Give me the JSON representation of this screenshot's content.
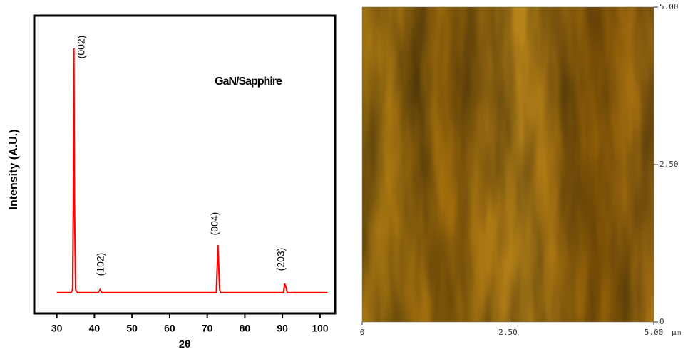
{
  "chart_data": [
    {
      "type": "line",
      "x_label": "2θ",
      "y_label": "Intensity (A.U.)",
      "title": "GaN/Sapphire",
      "x": [
        30,
        33.8,
        34.2,
        34.4,
        34.55,
        34.7,
        35.0,
        35.5,
        41.0,
        41.5,
        42.0,
        72.4,
        72.7,
        72.85,
        73.0,
        73.3,
        73.6,
        90.3,
        90.6,
        90.9,
        91.3,
        102
      ],
      "values": [
        7,
        7,
        8,
        38,
        89,
        38,
        8,
        7,
        7,
        8,
        7,
        7,
        17,
        23,
        18,
        8,
        7,
        7,
        10,
        9,
        7,
        7
      ],
      "color": "#ff0000",
      "xlim": [
        24,
        104
      ],
      "ylim": [
        0,
        100
      ],
      "xticks": [
        30,
        40,
        50,
        60,
        70,
        80,
        90,
        100
      ],
      "annotations": [
        "(002)",
        "(102)",
        "(004)",
        "(203)"
      ]
    },
    {
      "type": "image",
      "x_unit": "µm",
      "xlim": [
        0,
        5
      ],
      "ylim": [
        0,
        5
      ],
      "xticks": [
        0,
        {
          "value": 2.5,
          "label": "2.50"
        },
        {
          "value": 5,
          "label": "5.00"
        }
      ],
      "yticks": [
        0,
        {
          "value": 2.5,
          "label": "2.50"
        },
        {
          "value": 5,
          "label": "5.00"
        }
      ]
    }
  ]
}
